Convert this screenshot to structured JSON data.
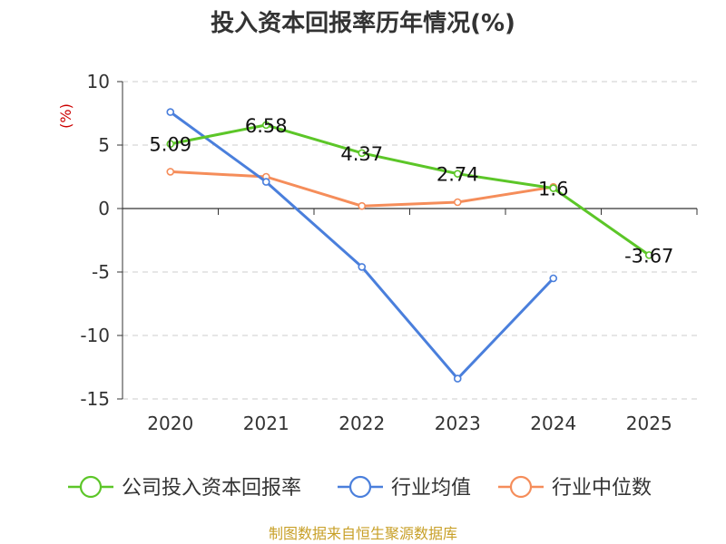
{
  "source": "制图数据来自恒生聚源数据库",
  "chart_data": {
    "type": "line",
    "title": "投入资本回报率历年情况(%)",
    "ylabel": "(%)",
    "xlabel": "",
    "categories": [
      "2020",
      "2021",
      "2022",
      "2023",
      "2024",
      "2025"
    ],
    "ylim": [
      -15,
      10
    ],
    "yticks": [
      10,
      5,
      0,
      -5,
      -10,
      -15
    ],
    "grid": true,
    "legend_position": "bottom",
    "series": [
      {
        "name": "公司投入资本回报率",
        "color": "#5cc628",
        "values": [
          5.09,
          6.58,
          4.37,
          2.74,
          1.6,
          -3.67
        ],
        "labels": [
          "5.09",
          "6.58",
          "4.37",
          "2.74",
          "1.6",
          "-3.67"
        ],
        "show_labels": true
      },
      {
        "name": "行业均值",
        "color": "#4a7fdc",
        "values": [
          7.6,
          2.1,
          -4.6,
          -13.4,
          -5.5,
          null
        ],
        "show_labels": false
      },
      {
        "name": "行业中位数",
        "color": "#f58d5a",
        "values": [
          2.9,
          2.5,
          0.2,
          0.5,
          1.7,
          null
        ],
        "show_labels": false
      }
    ]
  }
}
